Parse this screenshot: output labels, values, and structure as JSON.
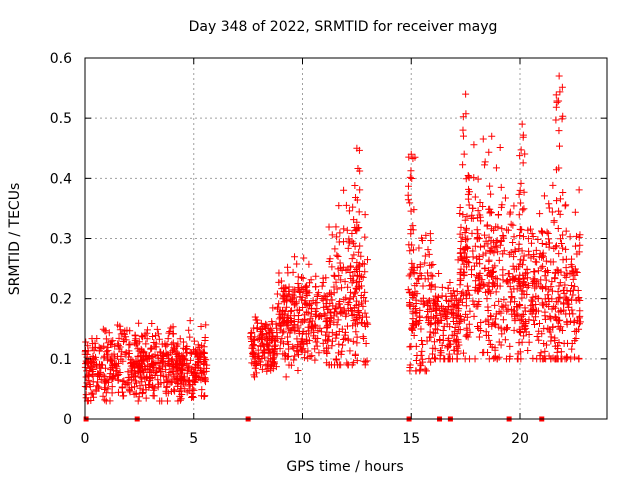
{
  "chart_data": {
    "type": "scatter",
    "title": "Day 348 of 2022, SRMTID for receiver mayg",
    "xlabel": "GPS time / hours",
    "ylabel": "SRMTID / TECUs",
    "xlim": [
      0,
      24
    ],
    "ylim": [
      0,
      0.6
    ],
    "x_ticks": [
      0,
      5,
      10,
      15,
      20
    ],
    "y_ticks": [
      0,
      0.1,
      0.2,
      0.3,
      0.4,
      0.5,
      0.6
    ],
    "x_tick_labels": [
      "0",
      "5",
      "10",
      "15",
      "20"
    ],
    "y_tick_labels": [
      "0",
      "0.1",
      "0.2",
      "0.3",
      "0.4",
      "0.5",
      "0.6"
    ],
    "grid": true,
    "marker": "plus",
    "color": "#ff0000",
    "segments": [
      {
        "x_start": 0.0,
        "x_end": 5.6,
        "y_min": 0.03,
        "y_max": 0.19,
        "y_center": 0.09
      },
      {
        "x_start": 7.6,
        "x_end": 8.8,
        "y_min": 0.07,
        "y_max": 0.2,
        "y_center": 0.12
      },
      {
        "x_start": 8.8,
        "x_end": 11.2,
        "y_min": 0.07,
        "y_max": 0.29,
        "y_center": 0.17
      },
      {
        "x_start": 11.2,
        "x_end": 13.0,
        "y_min": 0.09,
        "y_max": 0.45,
        "y_center": 0.2
      },
      {
        "x_start": 14.9,
        "x_end": 16.0,
        "y_min": 0.08,
        "y_max": 0.44,
        "y_center": 0.18
      },
      {
        "x_start": 16.0,
        "x_end": 17.2,
        "y_min": 0.1,
        "y_max": 0.3,
        "y_center": 0.16
      },
      {
        "x_start": 17.2,
        "x_end": 19.3,
        "y_min": 0.1,
        "y_max": 0.54,
        "y_center": 0.25
      },
      {
        "x_start": 19.3,
        "x_end": 21.4,
        "y_min": 0.1,
        "y_max": 0.49,
        "y_center": 0.22
      },
      {
        "x_start": 21.4,
        "x_end": 22.8,
        "y_min": 0.1,
        "y_max": 0.57,
        "y_center": 0.2
      }
    ],
    "peaks": [
      {
        "x": 12.5,
        "y": 0.45
      },
      {
        "x": 15.0,
        "y": 0.44
      },
      {
        "x": 17.5,
        "y": 0.54
      },
      {
        "x": 18.7,
        "y": 0.47
      },
      {
        "x": 20.1,
        "y": 0.49
      },
      {
        "x": 21.8,
        "y": 0.57
      }
    ],
    "zero_markers": [
      0.05,
      2.4,
      7.5,
      14.9,
      16.3,
      16.8,
      19.5,
      21.0
    ]
  }
}
